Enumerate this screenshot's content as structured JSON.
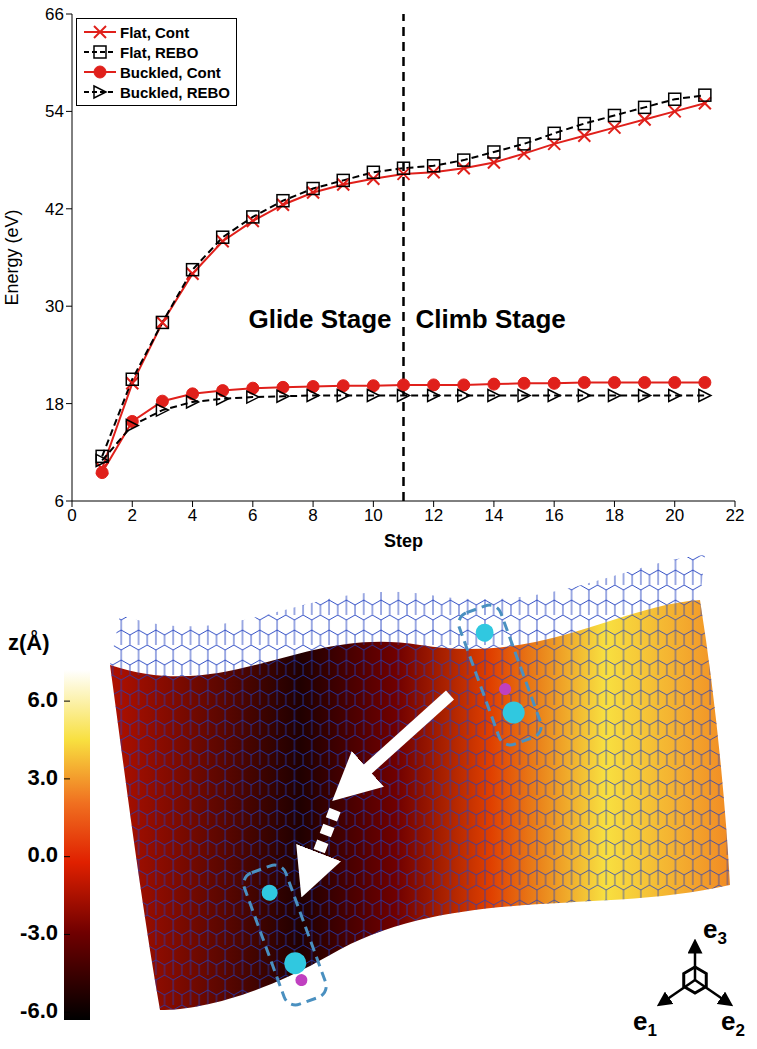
{
  "chart_data": {
    "type": "line",
    "x_label": "Step",
    "y_label": "Energy (eV)",
    "x": [
      1,
      2,
      3,
      4,
      5,
      6,
      7,
      8,
      9,
      10,
      11,
      12,
      13,
      14,
      15,
      16,
      17,
      18,
      19,
      20,
      21
    ],
    "series": [
      {
        "name": "Flat, Cont",
        "color": "#e0201b",
        "marker": "x",
        "line_style": "solid",
        "values": [
          10,
          20.5,
          28,
          34,
          38,
          40.5,
          42.5,
          44,
          45,
          45.7,
          46.3,
          46.5,
          47,
          47.7,
          48.8,
          50,
          51,
          52,
          53,
          54,
          55
        ]
      },
      {
        "name": "Flat, REBO",
        "color": "#000000",
        "marker": "square",
        "line_style": "dashed",
        "values": [
          11.5,
          21,
          28,
          34.5,
          38.5,
          41,
          43,
          44.5,
          45.5,
          46.5,
          47,
          47.3,
          48,
          49,
          50,
          51.3,
          52.5,
          53.5,
          54.5,
          55.5,
          56
        ]
      },
      {
        "name": "Buckled, Cont",
        "color": "#e0201b",
        "marker": "circle",
        "line_style": "solid",
        "values": [
          9.5,
          15.8,
          18.3,
          19.2,
          19.6,
          19.9,
          20,
          20.1,
          20.2,
          20.2,
          20.3,
          20.3,
          20.3,
          20.4,
          20.5,
          20.5,
          20.6,
          20.6,
          20.6,
          20.6,
          20.6
        ]
      },
      {
        "name": "Buckled, REBO",
        "color": "#000000",
        "marker": "triangle",
        "line_style": "dashed",
        "values": [
          11,
          15.3,
          17.2,
          18.2,
          18.6,
          18.8,
          18.9,
          19,
          19,
          19,
          19,
          19,
          19,
          19,
          19,
          19,
          19,
          19,
          19,
          19,
          19
        ]
      }
    ],
    "xlim": [
      0,
      22
    ],
    "xticks": [
      0,
      2,
      4,
      6,
      8,
      10,
      12,
      14,
      16,
      18,
      20,
      22
    ],
    "ylim": [
      6,
      66
    ],
    "yticks": [
      6,
      18,
      30,
      42,
      54,
      66
    ],
    "grid": false,
    "legend": "upper left",
    "vline_x": 11,
    "annotations": [
      "Glide Stage",
      "Climb Stage"
    ]
  },
  "diagram": {
    "colorbar": {
      "label": "z(Å)",
      "range": [
        -6.3,
        7.2
      ],
      "ticks": [
        {
          "value": 6,
          "label": "6.0"
        },
        {
          "value": 3,
          "label": "3.0"
        },
        {
          "value": 0,
          "label": "0.0"
        },
        {
          "value": -3,
          "label": "-3.0"
        },
        {
          "value": -6,
          "label": "-6.0"
        }
      ]
    },
    "axes_labels": [
      "e1",
      "e2",
      "e3"
    ]
  }
}
